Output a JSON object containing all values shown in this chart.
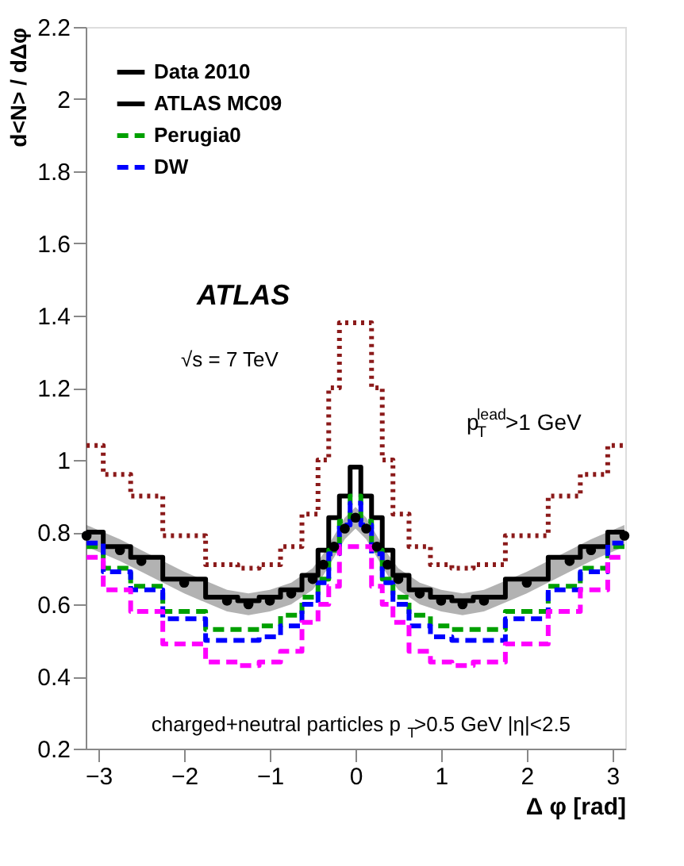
{
  "chart_data": {
    "type": "step",
    "xlabel": "Δ φ [rad]",
    "ylabel": "d<N> / dΔφ",
    "x": [
      -3.14,
      -2.75,
      -2.5,
      -2.0,
      -1.5,
      -1.25,
      -1.0,
      -0.75,
      -0.5,
      -0.375,
      -0.25,
      -0.125,
      0,
      0.125,
      0.25,
      0.375,
      0.5,
      0.75,
      1.0,
      1.25,
      1.5,
      2.0,
      2.5,
      2.75,
      3.14
    ],
    "series": [
      {
        "name": "Data 2010",
        "type": "scatter",
        "marker": "circle",
        "color": "#000000",
        "values": [
          0.79,
          0.75,
          0.72,
          0.66,
          0.61,
          0.6,
          0.61,
          0.63,
          0.67,
          0.71,
          0.76,
          0.81,
          0.84,
          0.81,
          0.76,
          0.71,
          0.67,
          0.63,
          0.61,
          0.6,
          0.61,
          0.66,
          0.72,
          0.75,
          0.79
        ],
        "lower": [
          0.76,
          0.72,
          0.69,
          0.63,
          0.58,
          0.57,
          0.58,
          0.6,
          0.64,
          0.68,
          0.73,
          0.78,
          0.81,
          0.78,
          0.73,
          0.68,
          0.64,
          0.6,
          0.58,
          0.57,
          0.58,
          0.63,
          0.69,
          0.72,
          0.76
        ],
        "upper": [
          0.82,
          0.78,
          0.75,
          0.69,
          0.64,
          0.63,
          0.64,
          0.66,
          0.7,
          0.74,
          0.79,
          0.84,
          0.87,
          0.84,
          0.79,
          0.74,
          0.7,
          0.66,
          0.64,
          0.63,
          0.64,
          0.69,
          0.75,
          0.78,
          0.82
        ]
      },
      {
        "name": "ATLAS MC09",
        "color": "#000000",
        "line_style": "solid",
        "values": [
          0.8,
          0.76,
          0.73,
          0.67,
          0.62,
          0.61,
          0.62,
          0.64,
          0.68,
          0.75,
          0.84,
          0.9,
          0.98,
          0.9,
          0.84,
          0.75,
          0.68,
          0.64,
          0.62,
          0.61,
          0.62,
          0.67,
          0.73,
          0.76,
          0.8
        ]
      },
      {
        "name": "Perugia0",
        "color": "#00a000",
        "line_style": "dashed",
        "values": [
          0.76,
          0.7,
          0.65,
          0.58,
          0.53,
          0.53,
          0.54,
          0.57,
          0.62,
          0.67,
          0.75,
          0.83,
          0.9,
          0.83,
          0.75,
          0.67,
          0.62,
          0.57,
          0.54,
          0.53,
          0.53,
          0.58,
          0.65,
          0.7,
          0.76
        ]
      },
      {
        "name": "DW",
        "color": "#0000ff",
        "line_style": "dashed",
        "values": [
          0.77,
          0.69,
          0.64,
          0.56,
          0.5,
          0.5,
          0.51,
          0.54,
          0.6,
          0.66,
          0.74,
          0.82,
          0.88,
          0.82,
          0.74,
          0.66,
          0.6,
          0.54,
          0.51,
          0.5,
          0.5,
          0.56,
          0.64,
          0.69,
          0.77
        ]
      },
      {
        "color": "#8b1a1a",
        "line_style": "dotted",
        "values": [
          1.04,
          0.96,
          0.9,
          0.79,
          0.71,
          0.7,
          0.71,
          0.76,
          0.85,
          1.0,
          1.2,
          1.38,
          1.38,
          1.38,
          1.2,
          1.0,
          0.85,
          0.76,
          0.71,
          0.7,
          0.71,
          0.79,
          0.9,
          0.96,
          1.04
        ]
      },
      {
        "color": "#ff00ff",
        "line_style": "dashed",
        "values": [
          0.73,
          0.64,
          0.58,
          0.49,
          0.44,
          0.43,
          0.44,
          0.47,
          0.55,
          0.6,
          0.65,
          0.76,
          0.76,
          0.76,
          0.65,
          0.6,
          0.55,
          0.47,
          0.44,
          0.43,
          0.44,
          0.49,
          0.58,
          0.64,
          0.73
        ]
      }
    ],
    "xlim": [
      -3.15,
      3.15
    ],
    "xticks": [
      -3,
      -2,
      -1,
      0,
      1,
      2,
      3
    ],
    "ylim": [
      0.2,
      2.2
    ],
    "yticks": [
      0.2,
      0.4,
      0.6,
      0.8,
      1,
      1.2,
      1.4,
      1.6,
      1.8,
      2,
      2.2
    ],
    "annotations": [
      "ATLAS",
      "√s = 7 TeV",
      "p$^{lead}$$_{T}$ >1 GeV",
      "charged+neutral particles p$_{T}$>0.5 GeV  |η|<2.5"
    ],
    "grid": false,
    "legend": "top left"
  }
}
